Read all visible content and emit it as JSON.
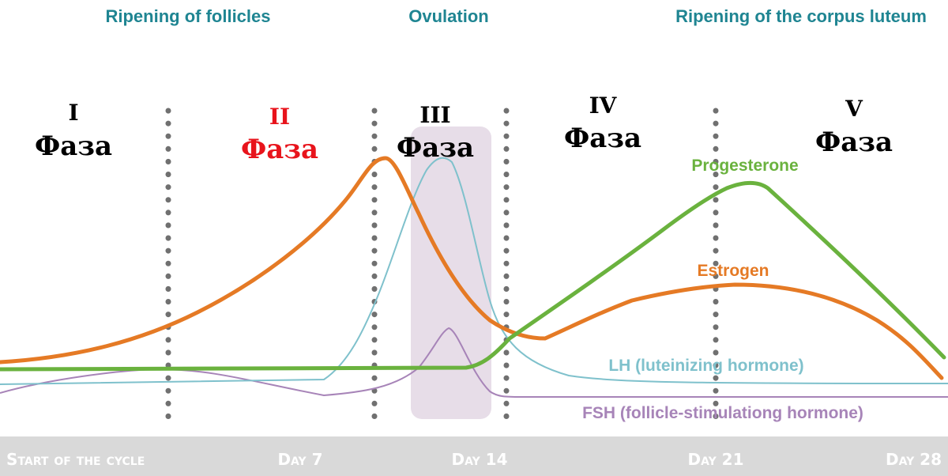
{
  "stages": {
    "follicles": "Ripening of follicles",
    "ovulation": "Ovulation",
    "corpus_luteum": "Ripening of the corpus luteum"
  },
  "phases": [
    {
      "num": "I",
      "word": "Фаза",
      "color": "#000000"
    },
    {
      "num": "II",
      "word": "Фаза",
      "color": "#e8141c"
    },
    {
      "num": "III",
      "word": "Фаза",
      "color": "#000000"
    },
    {
      "num": "IV",
      "word": "Фаза",
      "color": "#000000"
    },
    {
      "num": "V",
      "word": "Фаза",
      "color": "#000000"
    }
  ],
  "colors": {
    "estrogen": "#e57a25",
    "progesterone": "#6ab23e",
    "lh": "#7fc1cc",
    "fsh": "#a784b8",
    "stage_text": "#1f8592",
    "ovulation_band": "#e7dde8",
    "footer_bg": "#d9d9d9",
    "footer_text": "#ffffff",
    "divider": "#707070"
  },
  "chart_data": {
    "type": "line",
    "x_axis_labels": [
      "Start of the cycle",
      "Day 7",
      "Day 14",
      "Day 21",
      "Day 28"
    ],
    "series": [
      {
        "name": "Estrogen",
        "color": "#e57a25"
      },
      {
        "name": "Progesterone",
        "color": "#6ab23e"
      },
      {
        "name": "LH (luteinizing hormone)",
        "color": "#7fc1cc"
      },
      {
        "name": "FSH (follicle-stimulationg hormone)",
        "color": "#a784b8"
      }
    ]
  }
}
